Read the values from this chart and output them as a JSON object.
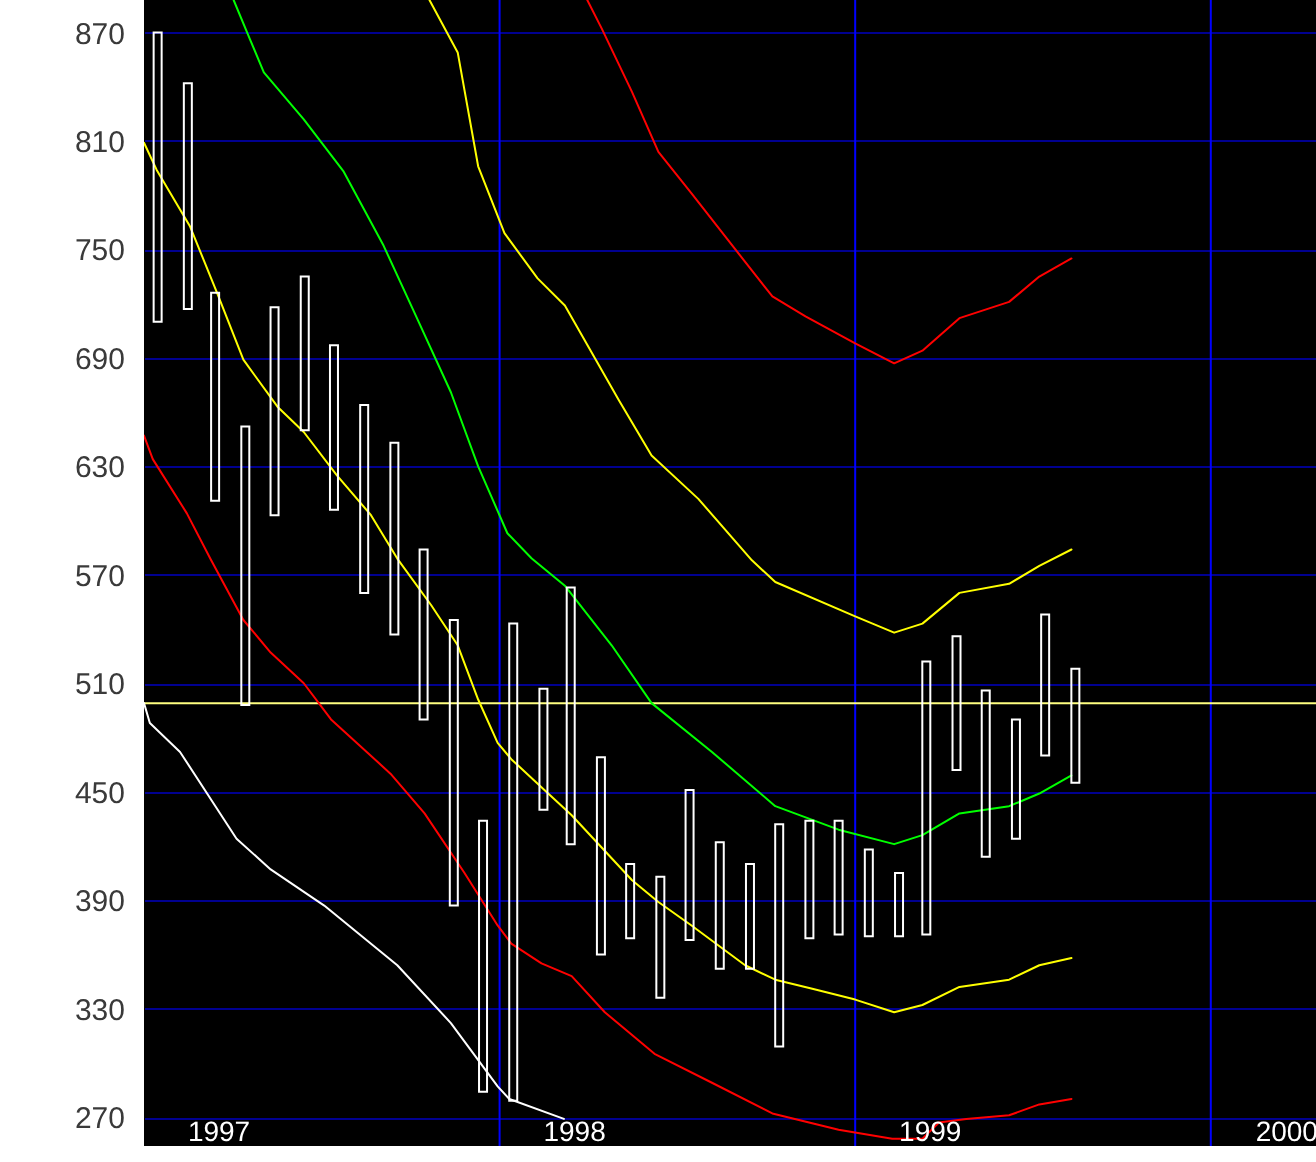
{
  "chart_data": {
    "type": "bar",
    "x": [
      "1997-01-15",
      "1997-02-15",
      "1997-03-15",
      "1997-04-15",
      "1997-05-15",
      "1997-06-15",
      "1997-07-15",
      "1997-08-15",
      "1997-09-15",
      "1997-10-15",
      "1997-11-15",
      "1997-12-15",
      "1998-01-15",
      "1998-02-15",
      "1998-03-15",
      "1998-04-15",
      "1998-05-15",
      "1998-06-15",
      "1998-07-15",
      "1998-08-15",
      "1998-09-15",
      "1998-10-15",
      "1998-11-15",
      "1998-12-15",
      "1999-01-15",
      "1999-02-15",
      "1999-03-15",
      "1999-04-15",
      "1999-05-15",
      "1999-06-15",
      "1999-07-15",
      "1999-08-15"
    ],
    "series": [
      {
        "type": "line",
        "color": "#ffffff",
        "x": [
          "1997-01-01",
          "1997-01-07",
          "1997-02-07",
          "1997-04-06",
          "1997-05-11",
          "1997-07-05",
          "1997-09-18",
          "1997-11-12",
          "1997-12-30",
          "1998-01-11",
          "1998-03-08"
        ],
        "values": [
          499,
          488,
          472,
          424,
          407,
          387,
          354,
          322,
          287,
          280,
          269
        ]
      },
      {
        "type": "line",
        "color": "#ff0000",
        "x": [
          "1997-01-01",
          "1997-01-10",
          "1997-02-14",
          "1997-03-10",
          "1997-04-13",
          "1997-05-11",
          "1997-06-14",
          "1997-07-12",
          "1997-09-11",
          "1997-10-16",
          "1997-11-26",
          "1997-12-30",
          "1998-01-13",
          "1998-02-13",
          "1998-03-16",
          "1998-04-19",
          "1998-06-09",
          "1998-08-07",
          "1998-10-08",
          "1998-12-15",
          "1999-02-08",
          "1999-03-11",
          "1999-03-28",
          "1999-04-25",
          "1999-06-08",
          "1999-07-09",
          "1999-08-11"
        ],
        "values": [
          647,
          634,
          604,
          579,
          545,
          527,
          510,
          490,
          460,
          438,
          405,
          376,
          366,
          355,
          348,
          328,
          305,
          289,
          272,
          263,
          258,
          258,
          267,
          269,
          271,
          277,
          280
        ]
      },
      {
        "type": "line",
        "color": "#ffff00",
        "x": [
          "1997-01-01",
          "1997-01-14",
          "1997-02-17",
          "1997-03-17",
          "1997-04-13",
          "1997-05-18",
          "1997-06-14",
          "1997-07-18",
          "1997-08-22",
          "1997-09-18",
          "1997-10-23",
          "1997-11-19",
          "1997-12-10",
          "1997-12-30",
          "1998-01-13",
          "1998-02-16",
          "1998-03-16",
          "1998-05-17",
          "1998-06-13",
          "1998-07-17",
          "1998-09-10",
          "1998-10-11",
          "1998-11-18",
          "1999-01-01",
          "1999-02-10",
          "1999-03-11",
          "1999-04-18",
          "1999-06-08",
          "1999-07-09",
          "1999-08-11"
        ],
        "values": [
          809,
          794,
          763,
          726,
          689,
          663,
          649,
          625,
          603,
          579,
          553,
          531,
          501,
          477,
          468,
          451,
          437,
          401,
          389,
          376,
          354,
          346,
          341,
          335,
          328,
          332,
          342,
          346,
          354,
          358
        ]
      },
      {
        "type": "line",
        "color": "#00ff00",
        "x": [
          "1997-04-03",
          "1997-04-20",
          "1997-05-04",
          "1997-06-14",
          "1997-07-25",
          "1997-09-04",
          "1997-10-09",
          "1997-11-12",
          "1997-12-10",
          "1998-01-09",
          "1998-02-03",
          "1998-03-09",
          "1998-04-26",
          "1998-06-06",
          "1998-08-07",
          "1998-10-11",
          "1998-12-15",
          "1999-02-10",
          "1999-03-11",
          "1999-04-18",
          "1999-06-08",
          "1999-07-09",
          "1999-08-11"
        ],
        "values": [
          888,
          866,
          848,
          822,
          793,
          752,
          711,
          671,
          630,
          593,
          579,
          564,
          531,
          499,
          472,
          442,
          429,
          421,
          426,
          438,
          442,
          449,
          459
        ]
      },
      {
        "type": "line",
        "color": "#ffff00",
        "x": [
          "1997-10-21",
          "1997-11-19",
          "1997-12-10",
          "1998-01-06",
          "1998-02-09",
          "1998-03-09",
          "1998-05-03",
          "1998-06-06",
          "1998-07-24",
          "1998-09-17",
          "1998-10-11",
          "1999-01-01",
          "1999-02-10",
          "1999-03-11",
          "1999-04-18",
          "1999-06-08",
          "1999-07-09",
          "1999-08-11"
        ],
        "values": [
          888,
          859,
          796,
          759,
          734,
          719,
          667,
          636,
          612,
          578,
          566,
          547,
          538,
          543,
          560,
          565,
          575,
          584
        ]
      },
      {
        "type": "line",
        "color": "#ff0000",
        "x": [
          "1998-04-01",
          "1998-04-16",
          "1998-05-17",
          "1998-06-13",
          "1998-07-17",
          "1998-08-31",
          "1998-10-08",
          "1998-11-11",
          "1999-01-01",
          "1999-02-10",
          "1999-03-11",
          "1999-04-18",
          "1999-06-08",
          "1999-07-09",
          "1999-08-11"
        ],
        "values": [
          888,
          872,
          837,
          804,
          781,
          750,
          724,
          713,
          698,
          687,
          694,
          712,
          721,
          735,
          745
        ]
      },
      {
        "color": "#ffffff",
        "base": [
          710,
          717,
          611,
          498,
          603,
          650,
          606,
          560,
          537,
          490,
          387,
          284,
          279,
          440,
          421,
          360,
          369,
          336,
          368,
          352,
          352,
          309,
          369,
          371,
          370,
          370,
          371,
          462,
          414,
          424,
          470,
          455
        ],
        "values": [
          160,
          125,
          115,
          154,
          115,
          85,
          91,
          104,
          106,
          94,
          158,
          150,
          264,
          67,
          142,
          109,
          41,
          67,
          83,
          70,
          58,
          123,
          65,
          63,
          48,
          35,
          151,
          74,
          92,
          66,
          78,
          63
        ]
      }
    ],
    "xlim": [
      "1997-01-01",
      "2000-04-18"
    ],
    "xticks": [
      {
        "value": "1997-03-18",
        "label": "1997"
      },
      {
        "value": "1998-03-18",
        "label": "1998"
      },
      {
        "value": "1999-03-18",
        "label": "1999"
      },
      {
        "value": "2000-03-18",
        "label": "2000"
      }
    ],
    "ylim": [
      254,
      888
    ],
    "yticks": [
      270,
      330,
      390,
      450,
      510,
      570,
      630,
      690,
      750,
      810,
      870
    ],
    "ref_lines": [
      {
        "axis": "x",
        "value": "1998",
        "color": "#0000ff"
      },
      {
        "axis": "x",
        "value": "1999",
        "color": "#0000ff"
      },
      {
        "axis": "x",
        "value": "2000",
        "color": "#0000ff"
      },
      {
        "axis": "y",
        "value": 499,
        "color": "#ffff80"
      }
    ],
    "grid": "y"
  }
}
